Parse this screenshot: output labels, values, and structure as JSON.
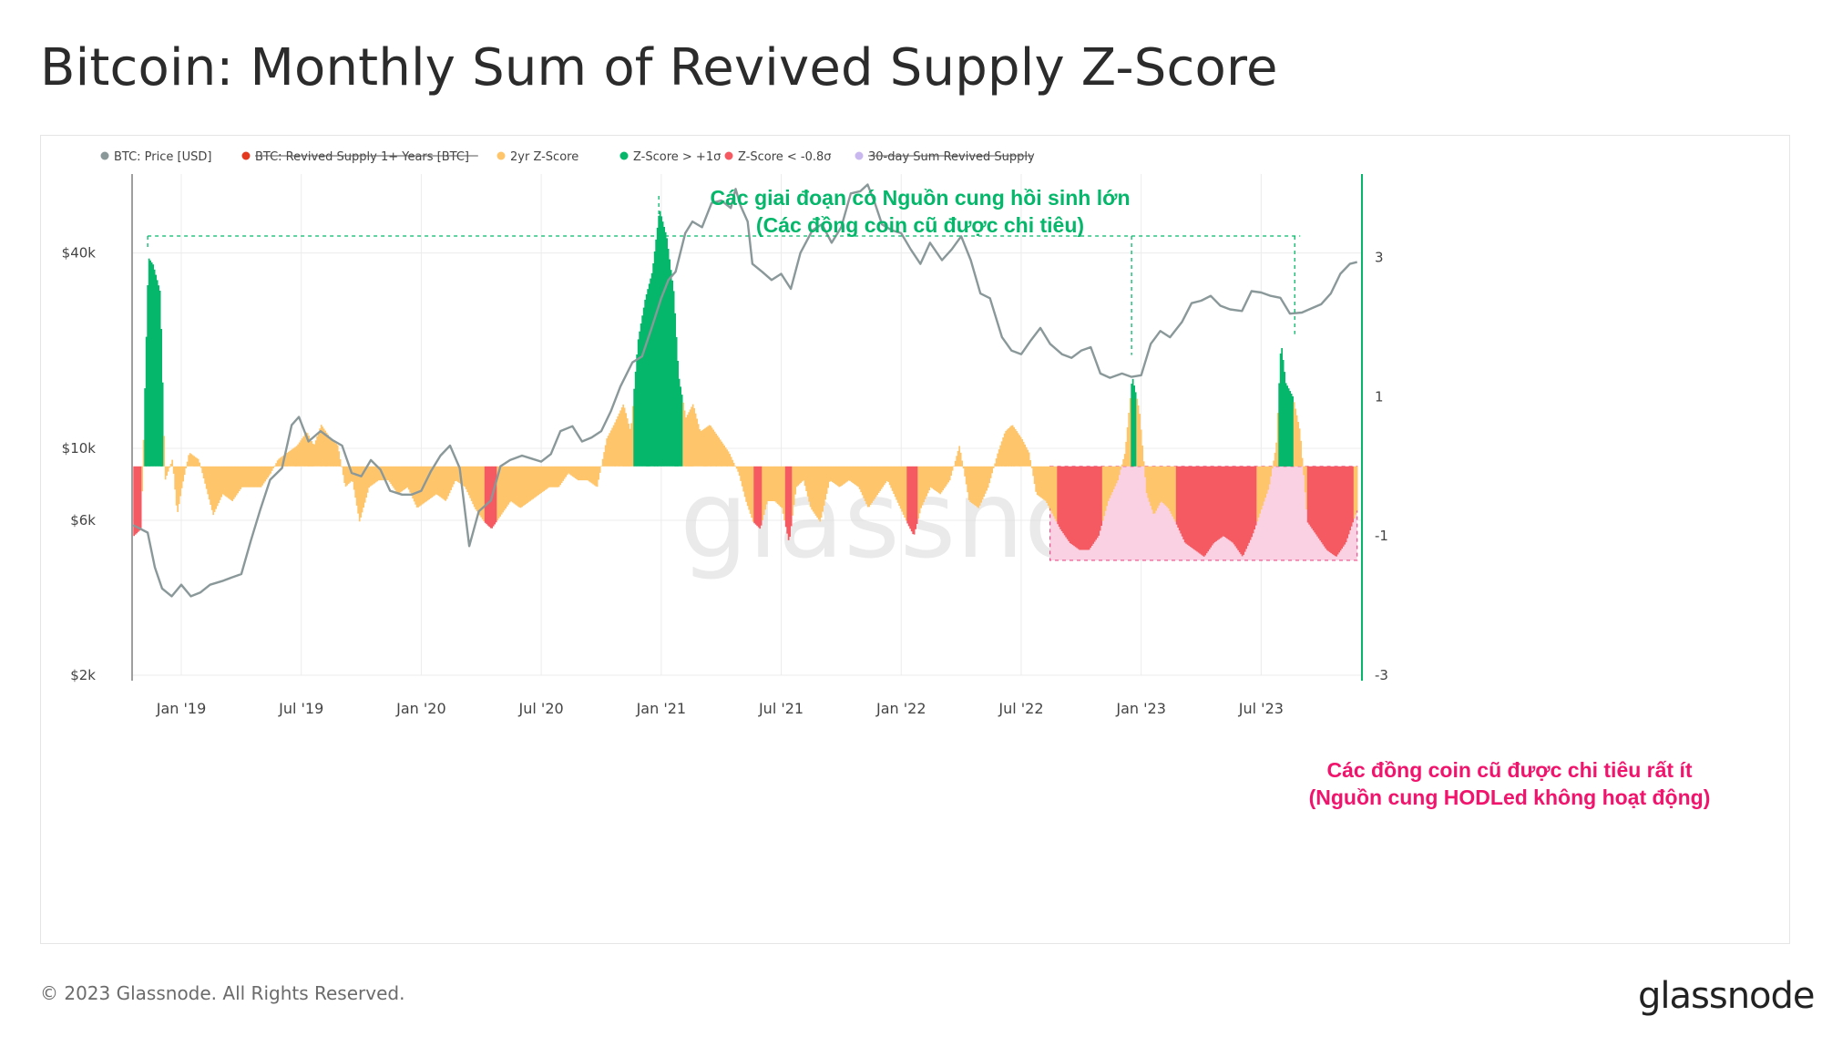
{
  "title": "Bitcoin: Monthly Sum of Revived Supply Z-Score",
  "footer": {
    "copyright": "© 2023 Glassnode. All Rights Reserved.",
    "logo": "glassnode"
  },
  "watermark": "glassnode",
  "colors": {
    "price": "#8a9899",
    "zpos": "#04b76a",
    "zmid": "#ffc56b",
    "zneg": "#f55a62",
    "inactive_fill": "#fad1e3",
    "annot_green": "#04b76a",
    "annot_pink": "#f0146c",
    "grid": "#ececec"
  },
  "chart_data": {
    "type": "area",
    "legend": [
      {
        "label": "BTC: Price [USD]",
        "color": "#8a9899",
        "disabled": false
      },
      {
        "label": "BTC: Revived Supply 1+ Years [BTC]",
        "color": "#e33a1f",
        "disabled": true
      },
      {
        "label": "2yr Z-Score",
        "color": "#ffc56b",
        "disabled": false
      },
      {
        "label": "Z-Score > +1σ",
        "color": "#04b76a",
        "disabled": false
      },
      {
        "label": "Z-Score < -0.8σ",
        "color": "#f55a62",
        "disabled": false
      },
      {
        "label": "30-day Sum Revived Supply",
        "color": "#c9b8f0",
        "disabled": true
      }
    ],
    "x_ticks": [
      "Jan '19",
      "Jul '19",
      "Jan '20",
      "Jul '20",
      "Jan '21",
      "Jul '21",
      "Jan '22",
      "Jul '22",
      "Jan '23",
      "Jul '23"
    ],
    "x_tick_values": [
      2019.0,
      2019.5,
      2020.0,
      2020.5,
      2021.0,
      2021.5,
      2022.0,
      2022.5,
      2023.0,
      2023.5
    ],
    "x_range": [
      2018.795,
      2023.92
    ],
    "y_left": {
      "scale": "log",
      "tick_labels": [
        "$2k",
        "$6k",
        "$10k",
        "$40k"
      ],
      "tick_values": [
        2000,
        6000,
        10000,
        40000
      ],
      "range": [
        2000,
        70000
      ]
    },
    "y_right": {
      "tick_labels": [
        "3",
        "1",
        "-1",
        "-3"
      ],
      "tick_values": [
        3,
        1,
        -1,
        -3
      ],
      "range": [
        -3,
        4.2
      ]
    },
    "thresholds": {
      "upper": 1,
      "lower": -0.8
    },
    "price_series": {
      "name": "BTC: Price [USD]",
      "points": [
        [
          2018.8,
          5800
        ],
        [
          2018.86,
          5500
        ],
        [
          2018.89,
          4300
        ],
        [
          2018.92,
          3700
        ],
        [
          2018.96,
          3500
        ],
        [
          2019.0,
          3800
        ],
        [
          2019.04,
          3500
        ],
        [
          2019.08,
          3600
        ],
        [
          2019.12,
          3800
        ],
        [
          2019.17,
          3900
        ],
        [
          2019.21,
          4000
        ],
        [
          2019.25,
          4100
        ],
        [
          2019.29,
          5200
        ],
        [
          2019.33,
          6500
        ],
        [
          2019.37,
          8000
        ],
        [
          2019.42,
          8700
        ],
        [
          2019.46,
          11800
        ],
        [
          2019.49,
          12500
        ],
        [
          2019.53,
          10500
        ],
        [
          2019.58,
          11300
        ],
        [
          2019.63,
          10600
        ],
        [
          2019.67,
          10200
        ],
        [
          2019.71,
          8400
        ],
        [
          2019.75,
          8200
        ],
        [
          2019.79,
          9200
        ],
        [
          2019.83,
          8600
        ],
        [
          2019.87,
          7400
        ],
        [
          2019.92,
          7200
        ],
        [
          2019.96,
          7200
        ],
        [
          2020.0,
          7400
        ],
        [
          2020.04,
          8500
        ],
        [
          2020.08,
          9500
        ],
        [
          2020.12,
          10200
        ],
        [
          2020.16,
          8700
        ],
        [
          2020.2,
          5000
        ],
        [
          2020.24,
          6400
        ],
        [
          2020.29,
          6900
        ],
        [
          2020.33,
          8800
        ],
        [
          2020.37,
          9200
        ],
        [
          2020.42,
          9500
        ],
        [
          2020.46,
          9300
        ],
        [
          2020.5,
          9100
        ],
        [
          2020.54,
          9600
        ],
        [
          2020.58,
          11300
        ],
        [
          2020.63,
          11700
        ],
        [
          2020.67,
          10500
        ],
        [
          2020.71,
          10800
        ],
        [
          2020.75,
          11300
        ],
        [
          2020.79,
          13000
        ],
        [
          2020.83,
          15500
        ],
        [
          2020.88,
          18400
        ],
        [
          2020.92,
          19200
        ],
        [
          2020.96,
          23500
        ],
        [
          2021.0,
          29000
        ],
        [
          2021.03,
          33000
        ],
        [
          2021.06,
          35000
        ],
        [
          2021.1,
          46000
        ],
        [
          2021.13,
          50000
        ],
        [
          2021.17,
          48000
        ],
        [
          2021.21,
          57000
        ],
        [
          2021.25,
          58000
        ],
        [
          2021.29,
          55000
        ],
        [
          2021.31,
          63000
        ],
        [
          2021.33,
          56000
        ],
        [
          2021.36,
          50000
        ],
        [
          2021.38,
          37000
        ],
        [
          2021.42,
          35000
        ],
        [
          2021.46,
          33000
        ],
        [
          2021.5,
          34500
        ],
        [
          2021.54,
          31000
        ],
        [
          2021.58,
          40000
        ],
        [
          2021.63,
          47000
        ],
        [
          2021.67,
          49000
        ],
        [
          2021.71,
          43000
        ],
        [
          2021.75,
          48000
        ],
        [
          2021.79,
          61000
        ],
        [
          2021.83,
          62000
        ],
        [
          2021.86,
          65000
        ],
        [
          2021.89,
          57000
        ],
        [
          2021.92,
          49000
        ],
        [
          2021.96,
          47000
        ],
        [
          2022.0,
          46000
        ],
        [
          2022.04,
          41000
        ],
        [
          2022.08,
          37000
        ],
        [
          2022.12,
          43000
        ],
        [
          2022.17,
          38000
        ],
        [
          2022.21,
          41000
        ],
        [
          2022.25,
          45000
        ],
        [
          2022.29,
          38000
        ],
        [
          2022.33,
          30000
        ],
        [
          2022.37,
          29000
        ],
        [
          2022.42,
          22000
        ],
        [
          2022.46,
          20000
        ],
        [
          2022.5,
          19500
        ],
        [
          2022.54,
          21500
        ],
        [
          2022.58,
          23500
        ],
        [
          2022.62,
          21000
        ],
        [
          2022.67,
          19500
        ],
        [
          2022.71,
          19000
        ],
        [
          2022.75,
          20000
        ],
        [
          2022.79,
          20500
        ],
        [
          2022.83,
          17000
        ],
        [
          2022.87,
          16500
        ],
        [
          2022.92,
          17000
        ],
        [
          2022.96,
          16600
        ],
        [
          2023.0,
          16800
        ],
        [
          2023.04,
          21000
        ],
        [
          2023.08,
          23000
        ],
        [
          2023.12,
          22000
        ],
        [
          2023.17,
          24500
        ],
        [
          2023.21,
          28000
        ],
        [
          2023.25,
          28500
        ],
        [
          2023.29,
          29500
        ],
        [
          2023.33,
          27500
        ],
        [
          2023.37,
          26800
        ],
        [
          2023.42,
          26500
        ],
        [
          2023.46,
          30500
        ],
        [
          2023.5,
          30200
        ],
        [
          2023.54,
          29500
        ],
        [
          2023.58,
          29100
        ],
        [
          2023.62,
          26000
        ],
        [
          2023.67,
          26200
        ],
        [
          2023.71,
          27000
        ],
        [
          2023.75,
          27800
        ],
        [
          2023.79,
          30000
        ],
        [
          2023.83,
          34500
        ],
        [
          2023.87,
          37000
        ],
        [
          2023.9,
          37500
        ]
      ]
    },
    "zscore_series": {
      "name": "2yr Z-Score",
      "points": [
        [
          2018.8,
          -1.0
        ],
        [
          2018.83,
          -0.9
        ],
        [
          2018.86,
          3.0
        ],
        [
          2018.88,
          2.9
        ],
        [
          2018.91,
          2.5
        ],
        [
          2018.93,
          -0.2
        ],
        [
          2018.96,
          0.1
        ],
        [
          2018.98,
          -0.7
        ],
        [
          2019.0,
          -0.3
        ],
        [
          2019.03,
          0.2
        ],
        [
          2019.07,
          0.1
        ],
        [
          2019.1,
          -0.3
        ],
        [
          2019.13,
          -0.7
        ],
        [
          2019.17,
          -0.4
        ],
        [
          2019.21,
          -0.5
        ],
        [
          2019.25,
          -0.3
        ],
        [
          2019.29,
          -0.3
        ],
        [
          2019.33,
          -0.3
        ],
        [
          2019.37,
          -0.1
        ],
        [
          2019.4,
          0.1
        ],
        [
          2019.44,
          0.2
        ],
        [
          2019.48,
          0.3
        ],
        [
          2019.52,
          0.5
        ],
        [
          2019.55,
          0.3
        ],
        [
          2019.58,
          0.6
        ],
        [
          2019.62,
          0.4
        ],
        [
          2019.65,
          0.3
        ],
        [
          2019.68,
          -0.3
        ],
        [
          2019.71,
          -0.2
        ],
        [
          2019.74,
          -0.8
        ],
        [
          2019.78,
          -0.3
        ],
        [
          2019.82,
          -0.2
        ],
        [
          2019.86,
          -0.2
        ],
        [
          2019.9,
          -0.4
        ],
        [
          2019.94,
          -0.3
        ],
        [
          2019.98,
          -0.6
        ],
        [
          2020.02,
          -0.5
        ],
        [
          2020.06,
          -0.4
        ],
        [
          2020.1,
          -0.5
        ],
        [
          2020.14,
          -0.2
        ],
        [
          2020.18,
          -0.3
        ],
        [
          2020.22,
          -0.6
        ],
        [
          2020.26,
          -0.8
        ],
        [
          2020.29,
          -0.9
        ],
        [
          2020.33,
          -0.7
        ],
        [
          2020.37,
          -0.5
        ],
        [
          2020.41,
          -0.6
        ],
        [
          2020.45,
          -0.5
        ],
        [
          2020.49,
          -0.4
        ],
        [
          2020.53,
          -0.3
        ],
        [
          2020.57,
          -0.3
        ],
        [
          2020.61,
          -0.1
        ],
        [
          2020.65,
          -0.2
        ],
        [
          2020.69,
          -0.2
        ],
        [
          2020.73,
          -0.3
        ],
        [
          2020.77,
          0.4
        ],
        [
          2020.8,
          0.6
        ],
        [
          2020.84,
          0.9
        ],
        [
          2020.87,
          0.5
        ],
        [
          2020.9,
          1.8
        ],
        [
          2020.93,
          2.4
        ],
        [
          2020.96,
          2.8
        ],
        [
          2020.99,
          3.7
        ],
        [
          2021.02,
          3.3
        ],
        [
          2021.05,
          2.5
        ],
        [
          2021.07,
          1.3
        ],
        [
          2021.1,
          0.7
        ],
        [
          2021.13,
          0.9
        ],
        [
          2021.16,
          0.5
        ],
        [
          2021.2,
          0.6
        ],
        [
          2021.24,
          0.4
        ],
        [
          2021.28,
          0.2
        ],
        [
          2021.32,
          -0.1
        ],
        [
          2021.35,
          -0.5
        ],
        [
          2021.38,
          -0.8
        ],
        [
          2021.41,
          -0.9
        ],
        [
          2021.44,
          -0.5
        ],
        [
          2021.47,
          -0.5
        ],
        [
          2021.5,
          -0.6
        ],
        [
          2021.53,
          -1.1
        ],
        [
          2021.56,
          -0.3
        ],
        [
          2021.59,
          -0.2
        ],
        [
          2021.62,
          -0.6
        ],
        [
          2021.66,
          -0.8
        ],
        [
          2021.7,
          -0.2
        ],
        [
          2021.74,
          -0.3
        ],
        [
          2021.78,
          -0.2
        ],
        [
          2021.82,
          -0.3
        ],
        [
          2021.86,
          -0.6
        ],
        [
          2021.9,
          -0.4
        ],
        [
          2021.94,
          -0.2
        ],
        [
          2021.98,
          -0.5
        ],
        [
          2022.02,
          -0.8
        ],
        [
          2022.05,
          -1.0
        ],
        [
          2022.08,
          -0.6
        ],
        [
          2022.12,
          -0.3
        ],
        [
          2022.16,
          -0.4
        ],
        [
          2022.2,
          -0.2
        ],
        [
          2022.24,
          0.3
        ],
        [
          2022.28,
          -0.5
        ],
        [
          2022.32,
          -0.6
        ],
        [
          2022.36,
          -0.3
        ],
        [
          2022.4,
          0.2
        ],
        [
          2022.43,
          0.5
        ],
        [
          2022.46,
          0.6
        ],
        [
          2022.5,
          0.4
        ],
        [
          2022.53,
          0.2
        ],
        [
          2022.56,
          -0.4
        ],
        [
          2022.6,
          -0.5
        ],
        [
          2022.63,
          -0.7
        ],
        [
          2022.66,
          -0.9
        ],
        [
          2022.7,
          -1.1
        ],
        [
          2022.74,
          -1.2
        ],
        [
          2022.78,
          -1.2
        ],
        [
          2022.82,
          -1.0
        ],
        [
          2022.86,
          -0.5
        ],
        [
          2022.9,
          -0.2
        ],
        [
          2022.93,
          0.2
        ],
        [
          2022.96,
          1.3
        ],
        [
          2022.99,
          0.8
        ],
        [
          2023.02,
          -0.4
        ],
        [
          2023.05,
          -0.7
        ],
        [
          2023.08,
          -0.5
        ],
        [
          2023.11,
          -0.6
        ],
        [
          2023.14,
          -0.8
        ],
        [
          2023.18,
          -1.1
        ],
        [
          2023.22,
          -1.2
        ],
        [
          2023.26,
          -1.3
        ],
        [
          2023.3,
          -1.1
        ],
        [
          2023.34,
          -1.0
        ],
        [
          2023.38,
          -1.1
        ],
        [
          2023.42,
          -1.3
        ],
        [
          2023.46,
          -1.0
        ],
        [
          2023.5,
          -0.6
        ],
        [
          2023.53,
          -0.3
        ],
        [
          2023.56,
          0.3
        ],
        [
          2023.58,
          1.8
        ],
        [
          2023.6,
          1.2
        ],
        [
          2023.63,
          1.0
        ],
        [
          2023.66,
          0.5
        ],
        [
          2023.69,
          -0.8
        ],
        [
          2023.73,
          -1.0
        ],
        [
          2023.77,
          -1.2
        ],
        [
          2023.81,
          -1.3
        ],
        [
          2023.85,
          -1.1
        ],
        [
          2023.88,
          -0.8
        ],
        [
          2023.9,
          -0.6
        ]
      ]
    },
    "annotations": [
      {
        "text_lines": [
          "Các giai đoạn có Nguồn cung hồi sinh lớn",
          "(Các đồng coin cũ được chi tiêu)"
        ],
        "color": "#04b76a",
        "position": "top-center",
        "bracket_x": [
          2018.86,
          2020.99,
          2022.96,
          2023.64
        ]
      },
      {
        "text_lines": [
          "Các đồng coin cũ được chi tiêu rất ít",
          "(Nguồn cung HODLed không hoạt động)"
        ],
        "color": "#f0146c",
        "position": "bottom-right",
        "region_x": [
          2022.62,
          2023.9
        ]
      }
    ]
  }
}
